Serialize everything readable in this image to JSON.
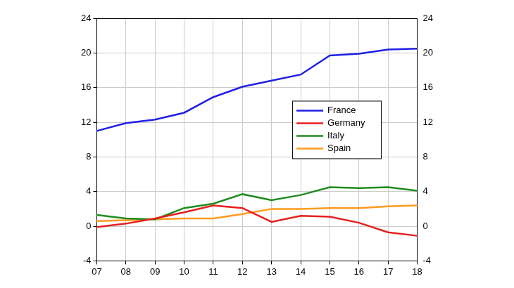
{
  "chart_data": {
    "type": "line",
    "categories": [
      "07",
      "08",
      "09",
      "10",
      "11",
      "12",
      "13",
      "14",
      "15",
      "16",
      "17",
      "18"
    ],
    "series": [
      {
        "name": "France",
        "color": "#1f1fe6",
        "values": [
          11.0,
          11.9,
          12.3,
          13.1,
          14.9,
          16.1,
          16.8,
          17.5,
          19.7,
          19.9,
          20.4,
          20.5
        ]
      },
      {
        "name": "Germany",
        "color": "#e61f1f",
        "values": [
          -0.1,
          0.3,
          0.9,
          1.6,
          2.4,
          2.1,
          0.5,
          1.2,
          1.1,
          0.4,
          -0.7,
          -1.1
        ]
      },
      {
        "name": "Italy",
        "color": "#1f8c1f",
        "values": [
          1.3,
          0.9,
          0.8,
          2.1,
          2.6,
          3.7,
          3.0,
          3.6,
          4.5,
          4.4,
          4.5,
          4.1
        ]
      },
      {
        "name": "Spain",
        "color": "#ff9a1f",
        "values": [
          0.6,
          0.7,
          0.8,
          0.9,
          0.9,
          1.4,
          2.0,
          2.0,
          2.1,
          2.1,
          2.3,
          2.4
        ]
      }
    ],
    "ylim": [
      -4,
      24
    ],
    "yticks": [
      -4,
      0,
      4,
      8,
      12,
      16,
      20,
      24
    ],
    "y2lim": [
      -4,
      24
    ],
    "y2ticks": [
      -4,
      0,
      4,
      8,
      12,
      16,
      20,
      24
    ],
    "grid": true,
    "legend": "right"
  }
}
